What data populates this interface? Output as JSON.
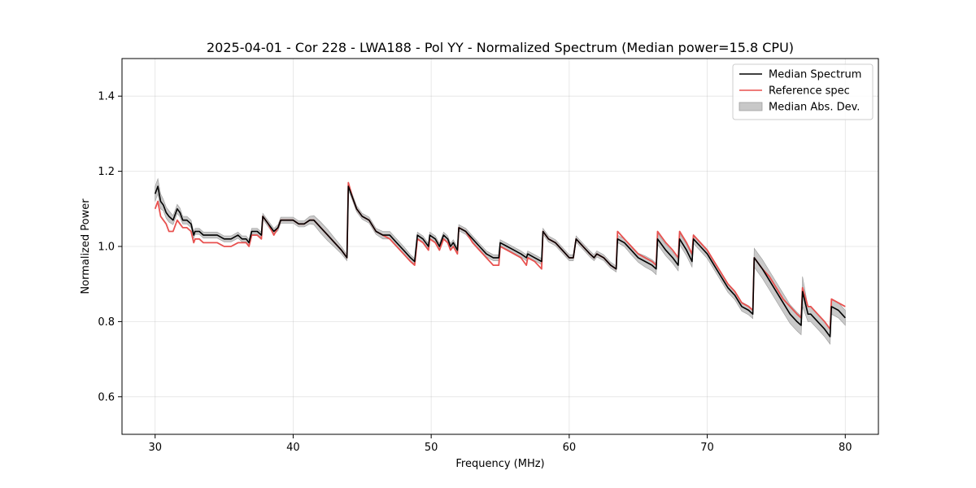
{
  "chart_data": {
    "type": "line",
    "title": "2025-04-01 - Cor 228 - LWA188 - Pol YY - Normalized Spectrum (Median power=15.8 CPU)",
    "xlabel": "Frequency (MHz)",
    "ylabel": "Normalized Power",
    "xlim": [
      27.6,
      82.4
    ],
    "ylim": [
      0.5,
      1.5
    ],
    "xticks": [
      30,
      40,
      50,
      60,
      70,
      80
    ],
    "yticks": [
      0.6,
      0.8,
      1.0,
      1.2,
      1.4
    ],
    "grid": true,
    "legend_position": "upper right",
    "series": [
      {
        "name": "Median Spectrum",
        "color": "#000000",
        "x": [
          30.0,
          30.2,
          30.4,
          30.6,
          30.8,
          31.0,
          31.3,
          31.6,
          31.8,
          32.0,
          32.3,
          32.6,
          32.8,
          32.9,
          33.2,
          33.5,
          34.0,
          34.5,
          35.0,
          35.5,
          36.0,
          36.3,
          36.6,
          36.8,
          37.0,
          37.4,
          37.7,
          37.8,
          38.2,
          38.6,
          38.9,
          39.1,
          39.5,
          40.0,
          40.4,
          40.8,
          41.2,
          41.5,
          42.0,
          42.5,
          43.0,
          43.5,
          43.9,
          44.0,
          44.3,
          44.6,
          45.0,
          45.5,
          46.0,
          46.5,
          47.0,
          47.5,
          48.0,
          48.5,
          48.8,
          49.0,
          49.4,
          49.8,
          49.9,
          50.3,
          50.6,
          50.9,
          51.2,
          51.4,
          51.6,
          51.9,
          52.0,
          52.5,
          53.0,
          53.5,
          54.0,
          54.5,
          54.9,
          55.0,
          55.5,
          56.0,
          56.5,
          56.9,
          57.0,
          57.5,
          58.0,
          58.1,
          58.5,
          59.0,
          59.5,
          60.0,
          60.3,
          60.5,
          61.0,
          61.5,
          61.8,
          62.0,
          62.5,
          63.0,
          63.4,
          63.5,
          64.0,
          64.5,
          65.0,
          65.5,
          66.0,
          66.3,
          66.4,
          67.0,
          67.5,
          67.9,
          68.0,
          68.5,
          68.9,
          69.0,
          69.5,
          70.0,
          70.5,
          71.0,
          71.5,
          72.0,
          72.5,
          73.0,
          73.3,
          73.4,
          74.0,
          74.5,
          75.0,
          75.5,
          76.0,
          76.5,
          76.8,
          76.9,
          77.3,
          77.5,
          78.0,
          78.5,
          78.9,
          79.0,
          79.5,
          80.0
        ],
        "y": [
          1.14,
          1.16,
          1.12,
          1.11,
          1.09,
          1.08,
          1.07,
          1.1,
          1.09,
          1.07,
          1.07,
          1.06,
          1.03,
          1.04,
          1.04,
          1.03,
          1.03,
          1.03,
          1.02,
          1.02,
          1.03,
          1.02,
          1.02,
          1.01,
          1.04,
          1.04,
          1.03,
          1.08,
          1.06,
          1.04,
          1.05,
          1.07,
          1.07,
          1.07,
          1.06,
          1.06,
          1.07,
          1.07,
          1.05,
          1.03,
          1.01,
          0.99,
          0.97,
          1.16,
          1.13,
          1.1,
          1.08,
          1.07,
          1.04,
          1.03,
          1.03,
          1.01,
          0.99,
          0.97,
          0.96,
          1.03,
          1.02,
          1.0,
          1.03,
          1.02,
          1.0,
          1.03,
          1.02,
          1.0,
          1.01,
          0.99,
          1.05,
          1.04,
          1.02,
          1.0,
          0.98,
          0.97,
          0.97,
          1.01,
          1.0,
          0.99,
          0.98,
          0.97,
          0.98,
          0.97,
          0.96,
          1.04,
          1.02,
          1.01,
          0.99,
          0.97,
          0.97,
          1.02,
          1.0,
          0.98,
          0.97,
          0.98,
          0.97,
          0.95,
          0.94,
          1.02,
          1.01,
          0.99,
          0.97,
          0.96,
          0.95,
          0.94,
          1.02,
          0.99,
          0.97,
          0.95,
          1.02,
          0.99,
          0.96,
          1.02,
          1.0,
          0.98,
          0.95,
          0.92,
          0.89,
          0.87,
          0.84,
          0.83,
          0.82,
          0.97,
          0.94,
          0.91,
          0.88,
          0.85,
          0.82,
          0.8,
          0.79,
          0.88,
          0.82,
          0.82,
          0.8,
          0.78,
          0.76,
          0.84,
          0.83,
          0.81
        ]
      },
      {
        "name": "Reference spec",
        "color": "#e8514f",
        "x": [
          30.0,
          30.2,
          30.4,
          30.6,
          30.8,
          31.0,
          31.3,
          31.6,
          31.8,
          32.0,
          32.3,
          32.6,
          32.8,
          32.9,
          33.2,
          33.5,
          34.0,
          34.5,
          35.0,
          35.5,
          36.0,
          36.3,
          36.6,
          36.8,
          37.0,
          37.4,
          37.7,
          37.8,
          38.2,
          38.6,
          38.9,
          39.1,
          39.5,
          40.0,
          40.4,
          40.8,
          41.2,
          41.5,
          42.0,
          42.5,
          43.0,
          43.5,
          43.9,
          44.0,
          44.3,
          44.6,
          45.0,
          45.5,
          46.0,
          46.5,
          47.0,
          47.5,
          48.0,
          48.5,
          48.8,
          49.0,
          49.4,
          49.8,
          49.9,
          50.3,
          50.6,
          50.9,
          51.2,
          51.4,
          51.6,
          51.9,
          52.0,
          52.5,
          53.0,
          53.5,
          54.0,
          54.5,
          54.9,
          55.0,
          55.5,
          56.0,
          56.5,
          56.9,
          57.0,
          57.5,
          58.0,
          58.1,
          58.5,
          59.0,
          59.5,
          60.0,
          60.3,
          60.5,
          61.0,
          61.5,
          61.8,
          62.0,
          62.5,
          63.0,
          63.4,
          63.5,
          64.0,
          64.5,
          65.0,
          65.5,
          66.0,
          66.3,
          66.4,
          67.0,
          67.5,
          67.9,
          68.0,
          68.5,
          68.9,
          69.0,
          69.5,
          70.0,
          70.5,
          71.0,
          71.5,
          72.0,
          72.5,
          73.0,
          73.3,
          73.4,
          74.0,
          74.5,
          75.0,
          75.5,
          76.0,
          76.5,
          76.8,
          76.9,
          77.3,
          77.5,
          78.0,
          78.5,
          78.9,
          79.0,
          79.5,
          80.0
        ],
        "y": [
          1.1,
          1.12,
          1.08,
          1.07,
          1.06,
          1.04,
          1.04,
          1.07,
          1.06,
          1.05,
          1.05,
          1.04,
          1.01,
          1.02,
          1.02,
          1.01,
          1.01,
          1.01,
          1.0,
          1.0,
          1.01,
          1.01,
          1.01,
          1.0,
          1.03,
          1.03,
          1.02,
          1.08,
          1.06,
          1.03,
          1.05,
          1.07,
          1.07,
          1.07,
          1.06,
          1.06,
          1.07,
          1.07,
          1.05,
          1.03,
          1.01,
          0.99,
          0.97,
          1.17,
          1.13,
          1.1,
          1.08,
          1.07,
          1.04,
          1.03,
          1.02,
          1.0,
          0.98,
          0.96,
          0.95,
          1.02,
          1.01,
          0.99,
          1.02,
          1.01,
          0.99,
          1.02,
          1.01,
          0.99,
          1.0,
          0.98,
          1.05,
          1.04,
          1.01,
          0.99,
          0.97,
          0.95,
          0.95,
          1.0,
          0.99,
          0.98,
          0.97,
          0.95,
          0.97,
          0.96,
          0.94,
          1.04,
          1.02,
          1.01,
          0.99,
          0.97,
          0.97,
          1.02,
          1.0,
          0.98,
          0.97,
          0.98,
          0.97,
          0.95,
          0.94,
          1.04,
          1.02,
          1.0,
          0.98,
          0.97,
          0.96,
          0.95,
          1.04,
          1.01,
          0.99,
          0.97,
          1.04,
          1.01,
          0.98,
          1.03,
          1.01,
          0.99,
          0.96,
          0.93,
          0.9,
          0.88,
          0.85,
          0.84,
          0.83,
          0.97,
          0.94,
          0.92,
          0.89,
          0.86,
          0.84,
          0.82,
          0.81,
          0.89,
          0.84,
          0.84,
          0.82,
          0.8,
          0.78,
          0.86,
          0.85,
          0.84
        ]
      }
    ],
    "band": {
      "name": "Median Abs. Dev.",
      "color": "#c0c0c0",
      "x": [
        30.0,
        30.2,
        30.4,
        30.6,
        30.8,
        31.0,
        31.3,
        31.6,
        31.8,
        32.0,
        32.3,
        32.6,
        32.8,
        32.9,
        33.2,
        33.5,
        34.0,
        34.5,
        35.0,
        35.5,
        36.0,
        36.3,
        36.6,
        36.8,
        37.0,
        37.4,
        37.7,
        37.8,
        38.2,
        38.6,
        38.9,
        39.1,
        39.5,
        40.0,
        40.4,
        40.8,
        41.2,
        41.5,
        42.0,
        42.5,
        43.0,
        43.5,
        43.9,
        44.0,
        44.3,
        44.6,
        45.0,
        45.5,
        46.0,
        46.5,
        47.0,
        47.5,
        48.0,
        48.5,
        48.8,
        49.0,
        49.4,
        49.8,
        49.9,
        50.3,
        50.6,
        50.9,
        51.2,
        51.4,
        51.6,
        51.9,
        52.0,
        52.5,
        53.0,
        53.5,
        54.0,
        54.5,
        54.9,
        55.0,
        55.5,
        56.0,
        56.5,
        56.9,
        57.0,
        57.5,
        58.0,
        58.1,
        58.5,
        59.0,
        59.5,
        60.0,
        60.3,
        60.5,
        61.0,
        61.5,
        61.8,
        62.0,
        62.5,
        63.0,
        63.4,
        63.5,
        64.0,
        64.5,
        65.0,
        65.5,
        66.0,
        66.3,
        66.4,
        67.0,
        67.5,
        67.9,
        68.0,
        68.5,
        68.9,
        69.0,
        69.5,
        70.0,
        70.5,
        71.0,
        71.5,
        72.0,
        72.5,
        73.0,
        73.3,
        73.4,
        74.0,
        74.5,
        75.0,
        75.5,
        76.0,
        76.5,
        76.8,
        76.9,
        77.3,
        77.5,
        78.0,
        78.5,
        78.9,
        79.0,
        79.5,
        80.0
      ],
      "dev": [
        0.02,
        0.02,
        0.02,
        0.015,
        0.015,
        0.015,
        0.012,
        0.012,
        0.012,
        0.01,
        0.01,
        0.01,
        0.008,
        0.008,
        0.008,
        0.008,
        0.008,
        0.008,
        0.008,
        0.008,
        0.008,
        0.008,
        0.008,
        0.008,
        0.008,
        0.008,
        0.008,
        0.008,
        0.008,
        0.008,
        0.008,
        0.008,
        0.008,
        0.008,
        0.008,
        0.008,
        0.01,
        0.012,
        0.015,
        0.015,
        0.012,
        0.01,
        0.008,
        0.01,
        0.008,
        0.008,
        0.008,
        0.008,
        0.008,
        0.01,
        0.01,
        0.01,
        0.01,
        0.008,
        0.008,
        0.008,
        0.008,
        0.008,
        0.008,
        0.008,
        0.008,
        0.008,
        0.008,
        0.008,
        0.008,
        0.008,
        0.008,
        0.008,
        0.008,
        0.008,
        0.008,
        0.008,
        0.008,
        0.008,
        0.008,
        0.008,
        0.008,
        0.008,
        0.008,
        0.008,
        0.008,
        0.008,
        0.008,
        0.008,
        0.008,
        0.008,
        0.008,
        0.008,
        0.008,
        0.008,
        0.008,
        0.008,
        0.008,
        0.008,
        0.008,
        0.01,
        0.01,
        0.012,
        0.012,
        0.015,
        0.015,
        0.015,
        0.015,
        0.015,
        0.015,
        0.015,
        0.015,
        0.015,
        0.015,
        0.012,
        0.012,
        0.012,
        0.012,
        0.012,
        0.012,
        0.012,
        0.012,
        0.012,
        0.012,
        0.025,
        0.025,
        0.025,
        0.025,
        0.025,
        0.025,
        0.025,
        0.025,
        0.04,
        0.02,
        0.02,
        0.02,
        0.02,
        0.02,
        0.02,
        0.02,
        0.02
      ]
    }
  }
}
